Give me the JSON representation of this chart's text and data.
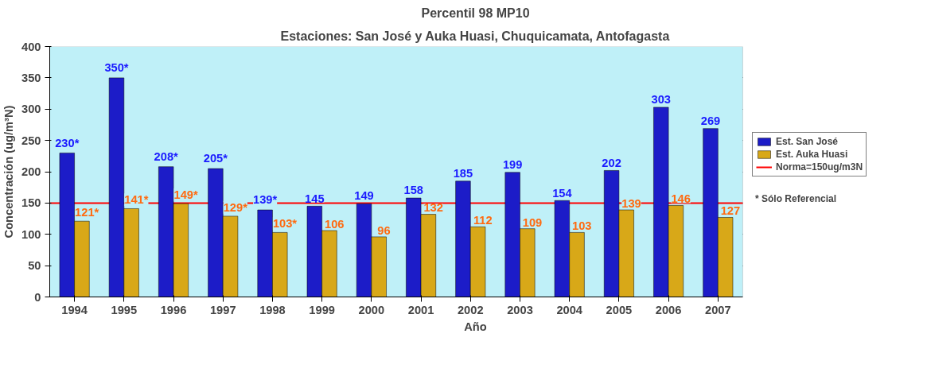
{
  "chart_data": {
    "type": "bar",
    "title": "Percentil 98 MP10",
    "subtitle": "Estaciones: San José y Auka Huasi, Chuquicamata, Antofagasta",
    "xlabel": "Año",
    "ylabel": "Concentración (ug/m³N)",
    "categories": [
      "1994",
      "1995",
      "1996",
      "1997",
      "1998",
      "1999",
      "2000",
      "2001",
      "2002",
      "2003",
      "2004",
      "2005",
      "2006",
      "2007"
    ],
    "series": [
      {
        "name": "Est. San José",
        "color": "#1c1cc8",
        "values": [
          230,
          350,
          208,
          205,
          139,
          145,
          149,
          158,
          185,
          199,
          154,
          202,
          303,
          269
        ],
        "value_labels": [
          "230*",
          "350*",
          "208*",
          "205*",
          "139*",
          "145",
          "149",
          "158",
          "185",
          "199",
          "154",
          "202",
          "303",
          "269"
        ]
      },
      {
        "name": "Est. Auka Huasi",
        "color": "#d8a818",
        "values": [
          121,
          141,
          149,
          129,
          103,
          106,
          96,
          132,
          112,
          109,
          103,
          139,
          146,
          127
        ],
        "value_labels": [
          "121*",
          "141*",
          "149*",
          "129*",
          "103*",
          "106",
          "96",
          "132",
          "112",
          "109",
          "103",
          "139",
          "146",
          "127"
        ]
      }
    ],
    "ref_lines": [
      {
        "axis": "y",
        "value": 150,
        "label": "Norma=150ug/m3N",
        "color": "#ff0000"
      }
    ],
    "annotations": [
      "* Sólo Referencial"
    ],
    "ylim": [
      0,
      400
    ],
    "yticks": [
      0,
      50,
      100,
      150,
      200,
      250,
      300,
      350,
      400
    ],
    "grid": "y",
    "legend": "right"
  }
}
